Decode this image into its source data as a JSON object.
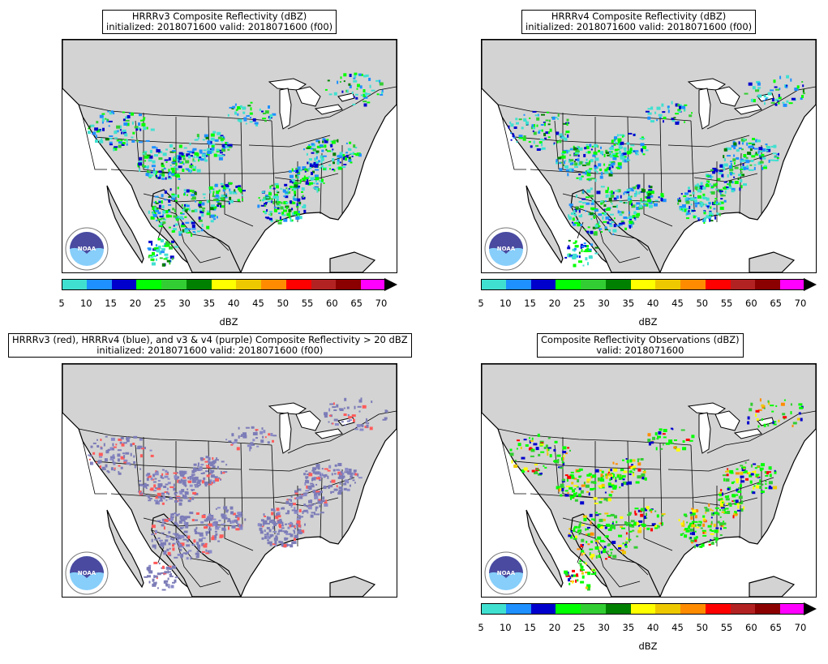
{
  "panels": [
    {
      "id": "hrrrv3",
      "title_line1": "HRRRv3 Composite Reflectivity (dBZ)",
      "title_line2": "initialized: 2018071600 valid: 2018071600 (f00)",
      "has_colorbar": true
    },
    {
      "id": "hrrrv4",
      "title_line1": "HRRRv4 Composite Reflectivity (dBZ)",
      "title_line2": "initialized: 2018071600 valid: 2018071600 (f00)",
      "has_colorbar": true
    },
    {
      "id": "overlap",
      "title_line1": "HRRRv3 (red), HRRRv4 (blue), and v3 & v4 (purple) Composite Reflectivity > 20 dBZ",
      "title_line2": "initialized: 2018071600 valid: 2018071600 (f00)",
      "has_colorbar": false
    },
    {
      "id": "obs",
      "title_line1": "Composite Reflectivity Observations (dBZ)",
      "title_line2": "valid: 2018071600",
      "has_colorbar": true
    }
  ],
  "colorbar": {
    "label": "dBZ",
    "ticks": [
      "5",
      "10",
      "15",
      "20",
      "25",
      "30",
      "35",
      "40",
      "45",
      "50",
      "55",
      "60",
      "65",
      "70"
    ],
    "colors": [
      "#40e0d0",
      "#1e90ff",
      "#0000cd",
      "#00ff00",
      "#32cd32",
      "#008000",
      "#ffff00",
      "#eec900",
      "#ff8c00",
      "#ff0000",
      "#b22222",
      "#8b0000",
      "#ff00ff"
    ],
    "extend_color": "#000000"
  },
  "map_style": {
    "land_color": "#d3d3d3",
    "water_color": "#ffffff",
    "border_color": "#000000",
    "v3_color": "#ff5a5a",
    "v4_color": "#8a8ac8",
    "both_color": "#7c7cb8"
  },
  "logo": {
    "text": "NOAA",
    "icon": "noaa-logo-icon"
  }
}
